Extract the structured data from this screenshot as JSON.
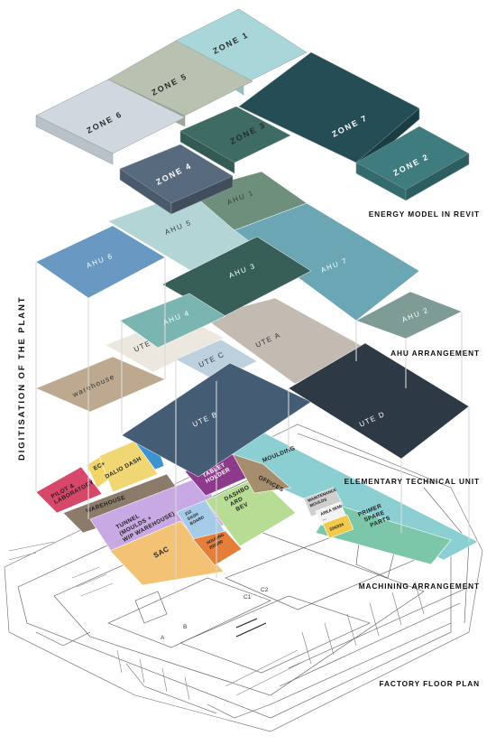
{
  "title": "DIGITISATION OF THE PLANT",
  "layers": {
    "energy": "ENERGY MODEL IN REVIT",
    "ahu": "AHU ARRANGEMENT",
    "ute": "ELEMENTARY TECHNICAL UNIT",
    "machining": "MACHINING ARRANGEMENT",
    "floor": "FACTORY FLOOR PLAN"
  },
  "zones": {
    "z1": "ZONE 1",
    "z2": "ZONE 2",
    "z3": "ZONE 3",
    "z4": "ZONE 4",
    "z5": "ZONE 5",
    "z6": "ZONE 6",
    "z7": "ZONE 7"
  },
  "ahus": {
    "a1": "AHU 1",
    "a2": "AHU 2",
    "a3": "AHU 3",
    "a4": "AHU 4",
    "a5": "AHU 5",
    "a6": "AHU 6",
    "a7": "AHU 7"
  },
  "utes": {
    "a": "UTE A",
    "b": "UTE B",
    "c": "UTE C",
    "d": "UTE D",
    "e": "UTE E",
    "warehouse": "warehouse"
  },
  "machining": {
    "pilot": [
      "PILOT &",
      "LABORATORY"
    ],
    "ec": "EC+",
    "dalio": "DALIO DASH",
    "warehouse": "WAREHOUSE",
    "tunnel": [
      "TUNNEL",
      "(MOULDS +",
      "WIP WAREHOUSE)"
    ],
    "sac": "SAC",
    "dash212": [
      "212",
      "DASH",
      "BOARD"
    ],
    "housing": [
      "HOUSING",
      "250/260"
    ],
    "dashboard_bev": [
      "DASHBO",
      "ARD",
      "BEV"
    ],
    "tablet": [
      "TABLET",
      "HOLDER"
    ],
    "offices": "OFFICES",
    "moulding": "MOULDING",
    "maintenance": [
      "MAINTENANCE",
      "MOULDS"
    ],
    "area_semi": [
      "AREA SEMI",
      "..."
    ],
    "n334": "334/334",
    "primer": [
      "PRIMER",
      "SPARE",
      "PARTS"
    ]
  },
  "plan": {
    "a": "A",
    "b": "B",
    "c1": "C1",
    "c2": "C2"
  },
  "colors": {
    "zone1": "#a9d7d9",
    "zone2": "#3f7c80",
    "zone3": "#3e6b63",
    "zone4": "#586a7e",
    "zone5": "#b9c2b0",
    "zone6": "#d0d7de",
    "zone7": "#244d55",
    "ahu1": "#6e8f7c",
    "ahu2": "#7e9c95",
    "ahu3": "#385e58",
    "ahu4": "#7ab5b1",
    "ahu5": "#b4d5d6",
    "ahu6": "#6998c2",
    "ahu7": "#6aa6b3",
    "uteA": "#c3bab1",
    "uteB": "#455d74",
    "uteC": "#bcd0de",
    "uteD": "#2d3945",
    "uteE": "#ece8e0",
    "uteWarehouse": "#bca98f",
    "moulding": "#8ccfd3",
    "pilot": "#d6476a",
    "ec": "#f1d56a",
    "dalio": "#3d93cf",
    "warehouseM": "#8c7b6a",
    "tunnel": "#c8a9e3",
    "sac": "#f3c274",
    "dash212": "#a6cbe8",
    "housing": "#e57e3a",
    "dashboardBev": "#b7dd95",
    "tablet": "#8e3a8c",
    "offices": "#a68d6e",
    "primer": "#7cc6a9",
    "maintenance": "#cfcfcf",
    "areaSemi": "#f2f2f2",
    "n334": "#f2c94c"
  }
}
